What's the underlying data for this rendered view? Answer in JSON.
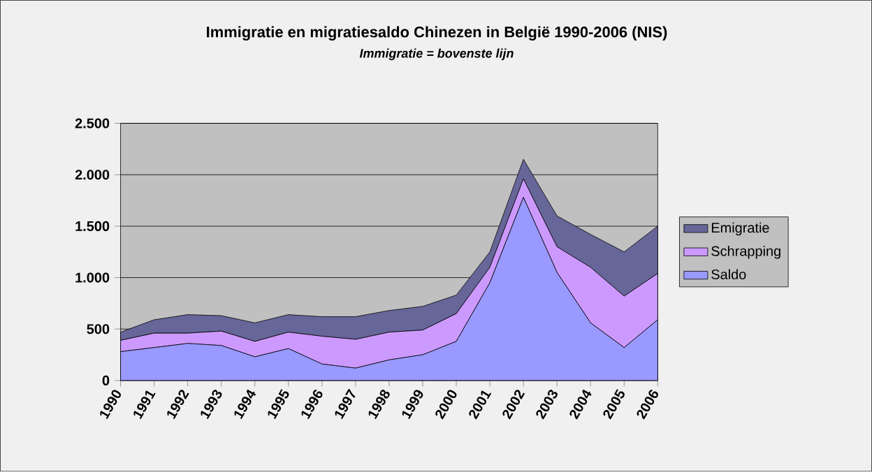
{
  "chart_data": {
    "type": "area",
    "stacked": true,
    "title": "Immigratie en migratiesaldo Chinezen in België 1990-2006 (NIS)",
    "subtitle": "Immigratie = bovenste lijn",
    "categories": [
      "1990",
      "1991",
      "1992",
      "1993",
      "1994",
      "1995",
      "1996",
      "1997",
      "1998",
      "1999",
      "2000",
      "2001",
      "2002",
      "2003",
      "2004",
      "2005",
      "2006"
    ],
    "series": [
      {
        "name": "Saldo",
        "color": "#9999ff",
        "values": [
          280,
          320,
          360,
          340,
          230,
          310,
          160,
          120,
          200,
          250,
          380,
          950,
          1780,
          1050,
          560,
          320,
          590
        ]
      },
      {
        "name": "Schrapping",
        "color": "#cc99ff",
        "values": [
          110,
          140,
          100,
          140,
          150,
          160,
          270,
          280,
          270,
          240,
          270,
          150,
          180,
          250,
          540,
          500,
          450
        ]
      },
      {
        "name": "Emigratie",
        "color": "#666699",
        "values": [
          80,
          130,
          180,
          150,
          180,
          170,
          190,
          220,
          210,
          230,
          180,
          150,
          190,
          300,
          320,
          430,
          460
        ]
      }
    ],
    "ylim": [
      0,
      2500
    ],
    "yticks": [
      {
        "value": 0,
        "label": "0"
      },
      {
        "value": 500,
        "label": "500"
      },
      {
        "value": 1000,
        "label": "1.000"
      },
      {
        "value": 1500,
        "label": "1.500"
      },
      {
        "value": 2000,
        "label": "2.000"
      },
      {
        "value": 2500,
        "label": "2.500"
      }
    ],
    "grid": "y",
    "legend": "right"
  }
}
